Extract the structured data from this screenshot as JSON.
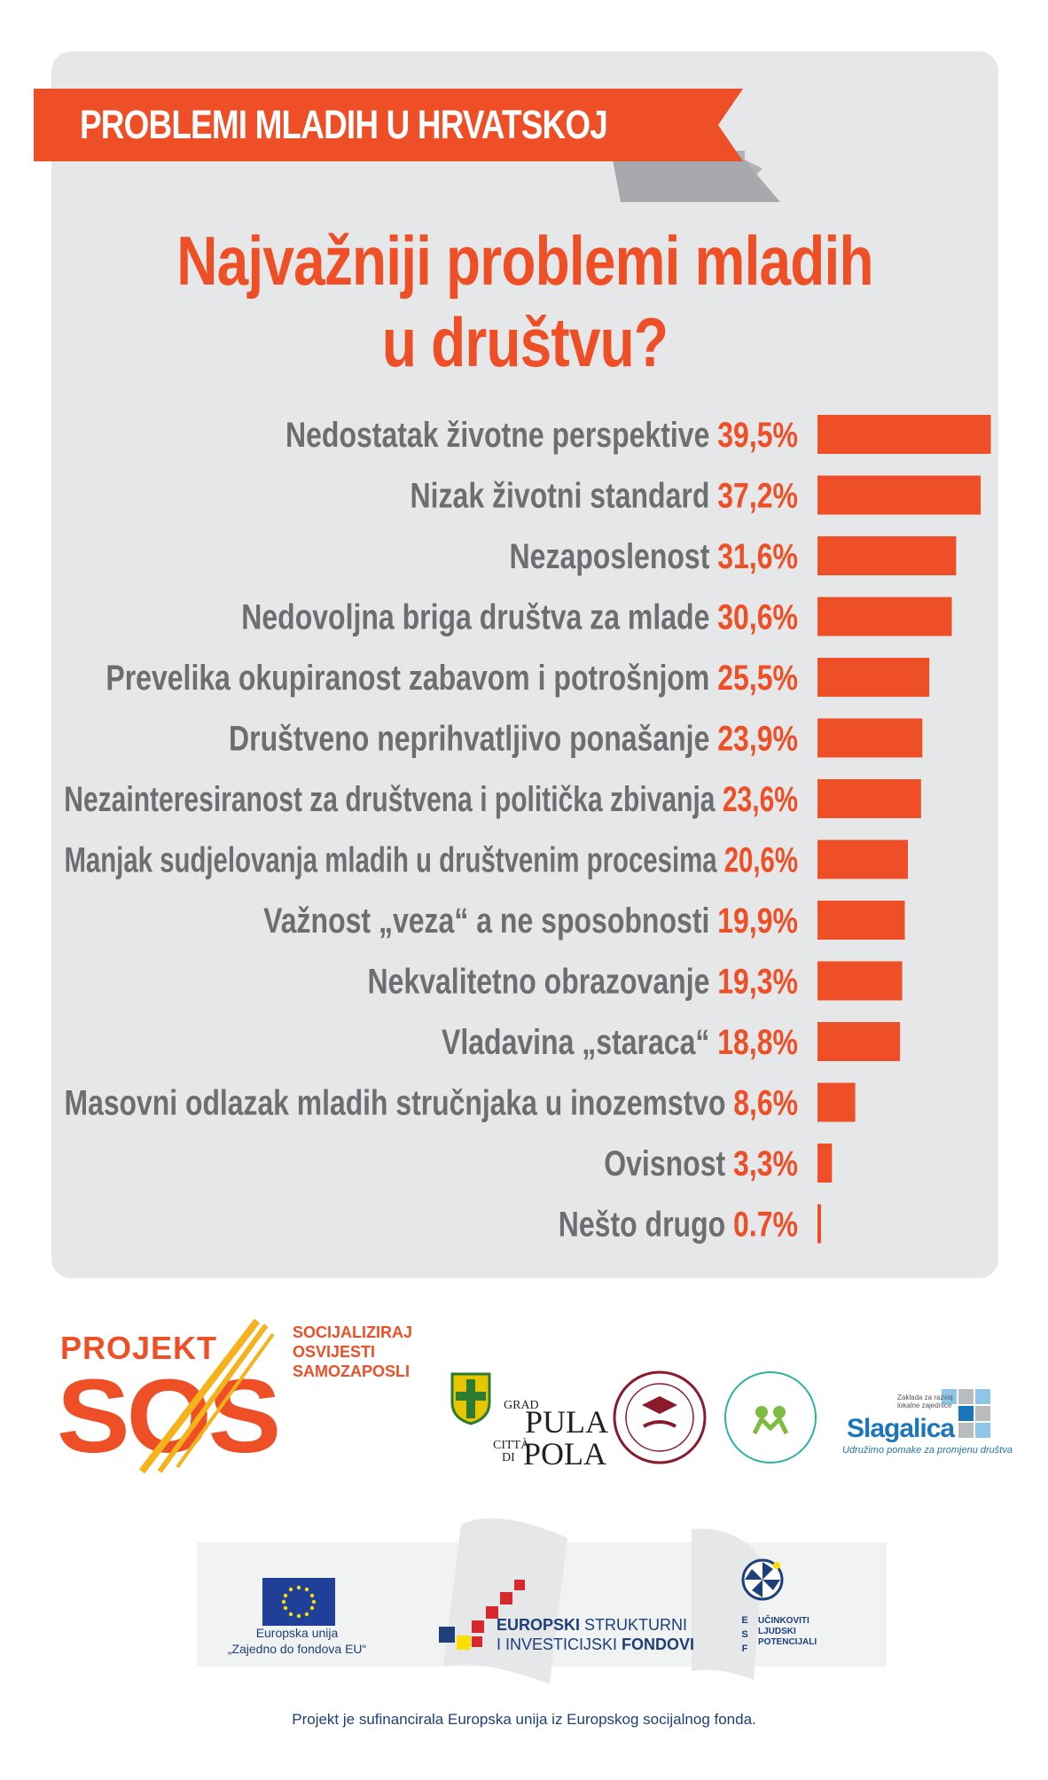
{
  "banner": {
    "title": "PROBLEMI MLADIH U HRVATSKOJ"
  },
  "headline": {
    "line1": "Najvažniji problemi mladih",
    "line2": "u društvu?"
  },
  "colors": {
    "accent": "#ee4f27",
    "label": "#6d6e71",
    "panel": "#e6e7e8",
    "eu_blue": "#1d3f7a"
  },
  "chart_data": {
    "type": "bar",
    "orientation": "horizontal",
    "title": "Najvažniji problemi mladih u društvu?",
    "categories": [
      "Nedostatak životne perspektive",
      "Nizak životni standard",
      "Nezaposlenost",
      "Nedovoljna briga društva za mlade",
      "Prevelika okupiranost zabavom i potrošnjom",
      "Društveno neprihvatljivo ponašanje",
      "Nezainteresiranost za društvena i politička zbivanja",
      "Manjak sudjelovanja mladih u društvenim procesima",
      "Važnost „veza“ a ne sposobnosti",
      "Nekvalitetno obrazovanje",
      "Vladavina „staraca“",
      "Masovni odlazak mladih stručnjaka u inozemstvo",
      "Ovisnost",
      "Nešto drugo"
    ],
    "values": [
      39.5,
      37.2,
      31.6,
      30.6,
      25.5,
      23.9,
      23.6,
      20.6,
      19.9,
      19.3,
      18.8,
      8.6,
      3.3,
      0.7
    ],
    "value_labels": [
      "39,5%",
      "37,2%",
      "31,6%",
      "30,6%",
      "25,5%",
      "23,9%",
      "23,6%",
      "20,6%",
      "19,9%",
      "19,3%",
      "18,8%",
      "8,6%",
      "3,3%",
      "0.7%"
    ],
    "unit": "%",
    "xlim": [
      0,
      40
    ]
  },
  "sponsors": {
    "projekt": "PROJEKT",
    "sos": "SOS",
    "tagline": [
      "SOCIJALIZIRAJ",
      "OSVIJESTI",
      "SAMOZAPOSLI"
    ],
    "pula": {
      "grad": "GRAD",
      "pula": "PULA",
      "citta": "CITTÀ",
      "di": "DI",
      "pola": "POLA"
    },
    "slagalica": {
      "name": "Slagalica",
      "subtitle": "Udružimo pomake za promjenu društva",
      "zaklada": [
        "Zaklada za razvoj",
        "lokalne zajednice"
      ]
    },
    "eu": {
      "line1": "Europska unija",
      "line2": "„Zajedno do fondova EU“"
    },
    "esif": {
      "line1a": "EUROPSKI",
      "line1b": " STRUKTURNI",
      "line2a": "I INVESTICIJSKI ",
      "line2b": "FONDOVI"
    },
    "esf": {
      "letters": [
        "E",
        "S",
        "F"
      ],
      "lines": [
        "UČINKOVITI",
        "LJUDSKI",
        "POTENCIJALI"
      ]
    }
  },
  "footer": {
    "text": "Projekt je sufinancirala Europska unija iz Europskog socijalnog fonda."
  }
}
